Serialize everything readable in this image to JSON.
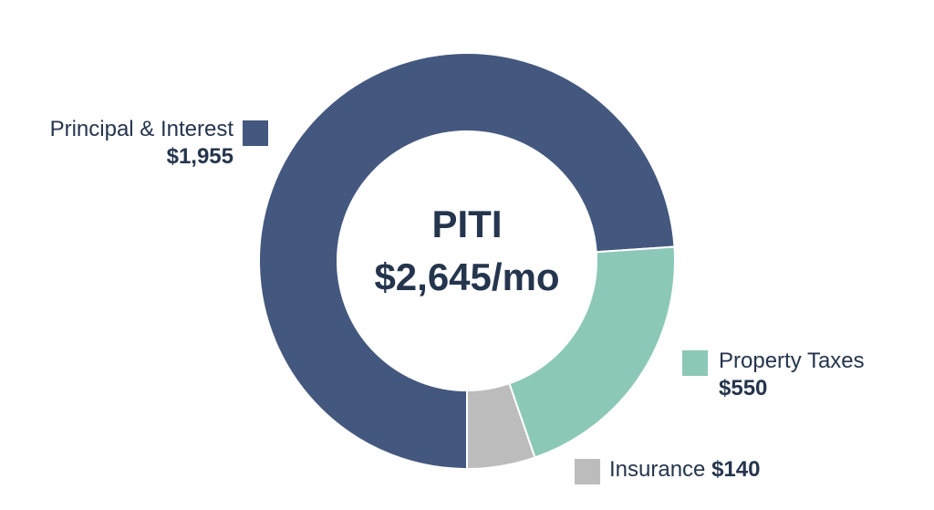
{
  "chart_data": {
    "type": "pie",
    "donut": true,
    "center_title": "PITI",
    "center_value": "$2,645/mo",
    "categories": [
      "Principal & Interest",
      "Property Taxes",
      "Insurance"
    ],
    "values": [
      1955,
      550,
      140
    ],
    "value_labels": [
      "$1,955",
      "$550",
      "$140"
    ],
    "colors": [
      "#44587f",
      "#8cc8b8",
      "#bcbcbc"
    ],
    "legend": "beside-slices"
  }
}
